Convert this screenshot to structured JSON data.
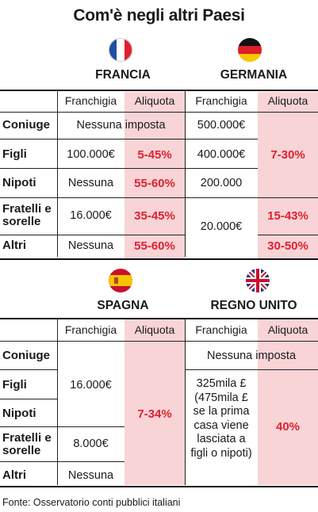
{
  "title": "Com'è negli altri Paesi",
  "source": "Fonte: Osservatorio conti pubblici italiani",
  "headers": {
    "franchigia": "Franchigia",
    "aliquota": "Aliquota"
  },
  "rows": [
    "Coniuge",
    "Figli",
    "Nipoti",
    "Fratelli e sorelle",
    "Altri"
  ],
  "francia": {
    "name": "FRANCIA",
    "flag_icon": "france-flag-icon",
    "coniuge_all": "Nessuna imposta",
    "figli_fr": "100.000€",
    "figli_al": "5-45%",
    "nipoti_fr": "Nessuna",
    "nipoti_al": "55-60%",
    "fratelli_fr": "16.000€",
    "fratelli_al": "35-45%",
    "altri_fr": "Nessuna",
    "altri_al": "55-60%"
  },
  "germania": {
    "name": "GERMANIA",
    "flag_icon": "germany-flag-icon",
    "coniuge_fr": "500.000€",
    "figli_fr": "400.000€",
    "nipoti_fr": "200.000",
    "al_coniuge_nipoti": "7-30%",
    "fratelli_altri_fr": "20.000€",
    "fratelli_al": "15-43%",
    "altri_al": "30-50%"
  },
  "spagna": {
    "name": "SPAGNA",
    "flag_icon": "spain-flag-icon",
    "coniuge_nipoti_fr": "16.000€",
    "fratelli_fr": "8.000€",
    "altri_fr": "Nessuna",
    "al_all": "7-34%"
  },
  "regno_unito": {
    "name": "REGNO UNITO",
    "flag_icon": "uk-flag-icon",
    "coniuge_all": "Nessuna imposta",
    "fr_note": "325mila £ (475mila £ se la prima casa viene lasciata a figli o nipoti)",
    "al_all": "40%"
  },
  "colors": {
    "pink": "#f8d4d7",
    "red": "#e0212e"
  }
}
